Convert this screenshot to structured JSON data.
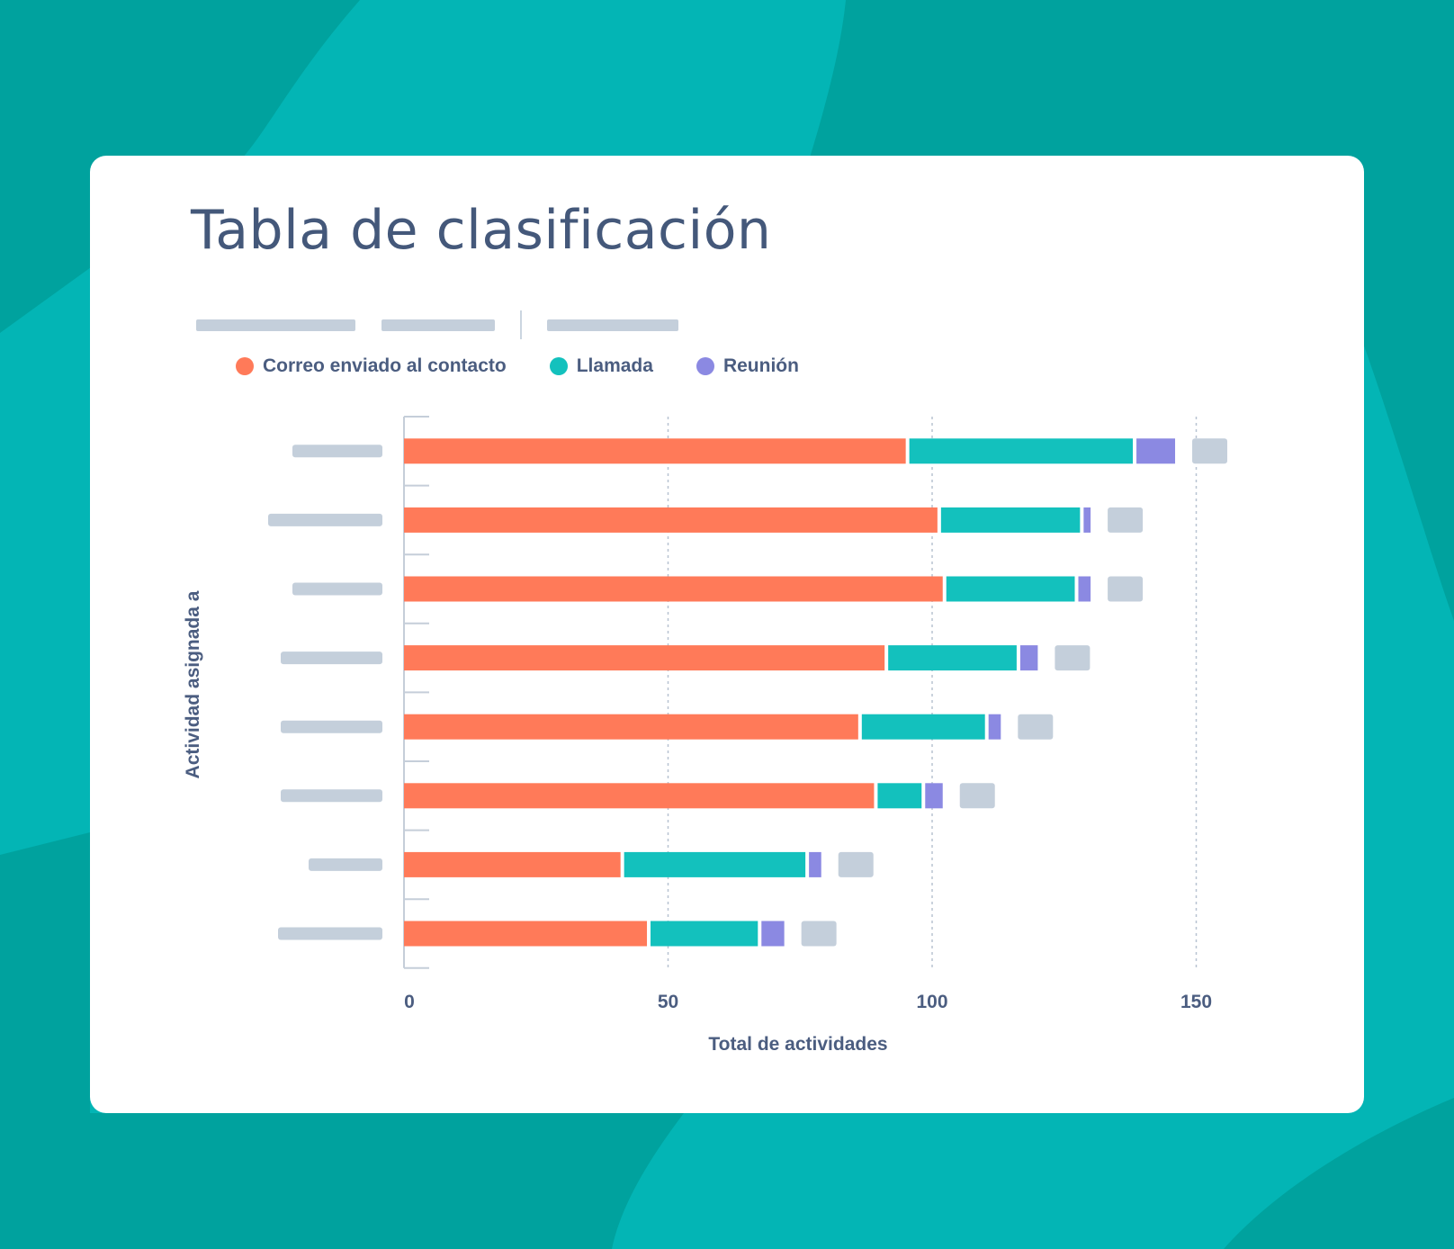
{
  "card": {
    "title": "Tabla de clasificación"
  },
  "legend": [
    {
      "label": "Correo enviado al contacto",
      "color": "#ff7a59"
    },
    {
      "label": "Llamada",
      "color": "#13c1bd"
    },
    {
      "label": "Reunión",
      "color": "#8b89e2"
    }
  ],
  "colors": {
    "background": "#03b5b5",
    "background_dark": "#00a29e",
    "placeholder": "#c4cfdb",
    "text": "#44587a",
    "axis": "#c5ced9"
  },
  "chart_data": {
    "type": "bar",
    "orientation": "horizontal",
    "stacked": true,
    "title": "Tabla de clasificación",
    "xlabel": "Total de actividades",
    "ylabel": "Actividad asignada a",
    "xlim": [
      0,
      160
    ],
    "xticks": [
      0,
      50,
      100,
      150
    ],
    "grid": true,
    "legend_position": "top-left",
    "categories": [
      "",
      "",
      "",
      "",
      "",
      "",
      "",
      ""
    ],
    "series": [
      {
        "name": "Correo enviado al contacto",
        "color": "#ff7a59",
        "values": [
          95,
          101,
          102,
          91,
          86,
          89,
          41,
          46
        ]
      },
      {
        "name": "Llamada",
        "color": "#13c1bd",
        "values": [
          43,
          27,
          25,
          25,
          24,
          9,
          35,
          21
        ]
      },
      {
        "name": "Reunión",
        "color": "#8b89e2",
        "values": [
          8,
          2,
          3,
          4,
          3,
          4,
          3,
          5
        ]
      }
    ]
  }
}
